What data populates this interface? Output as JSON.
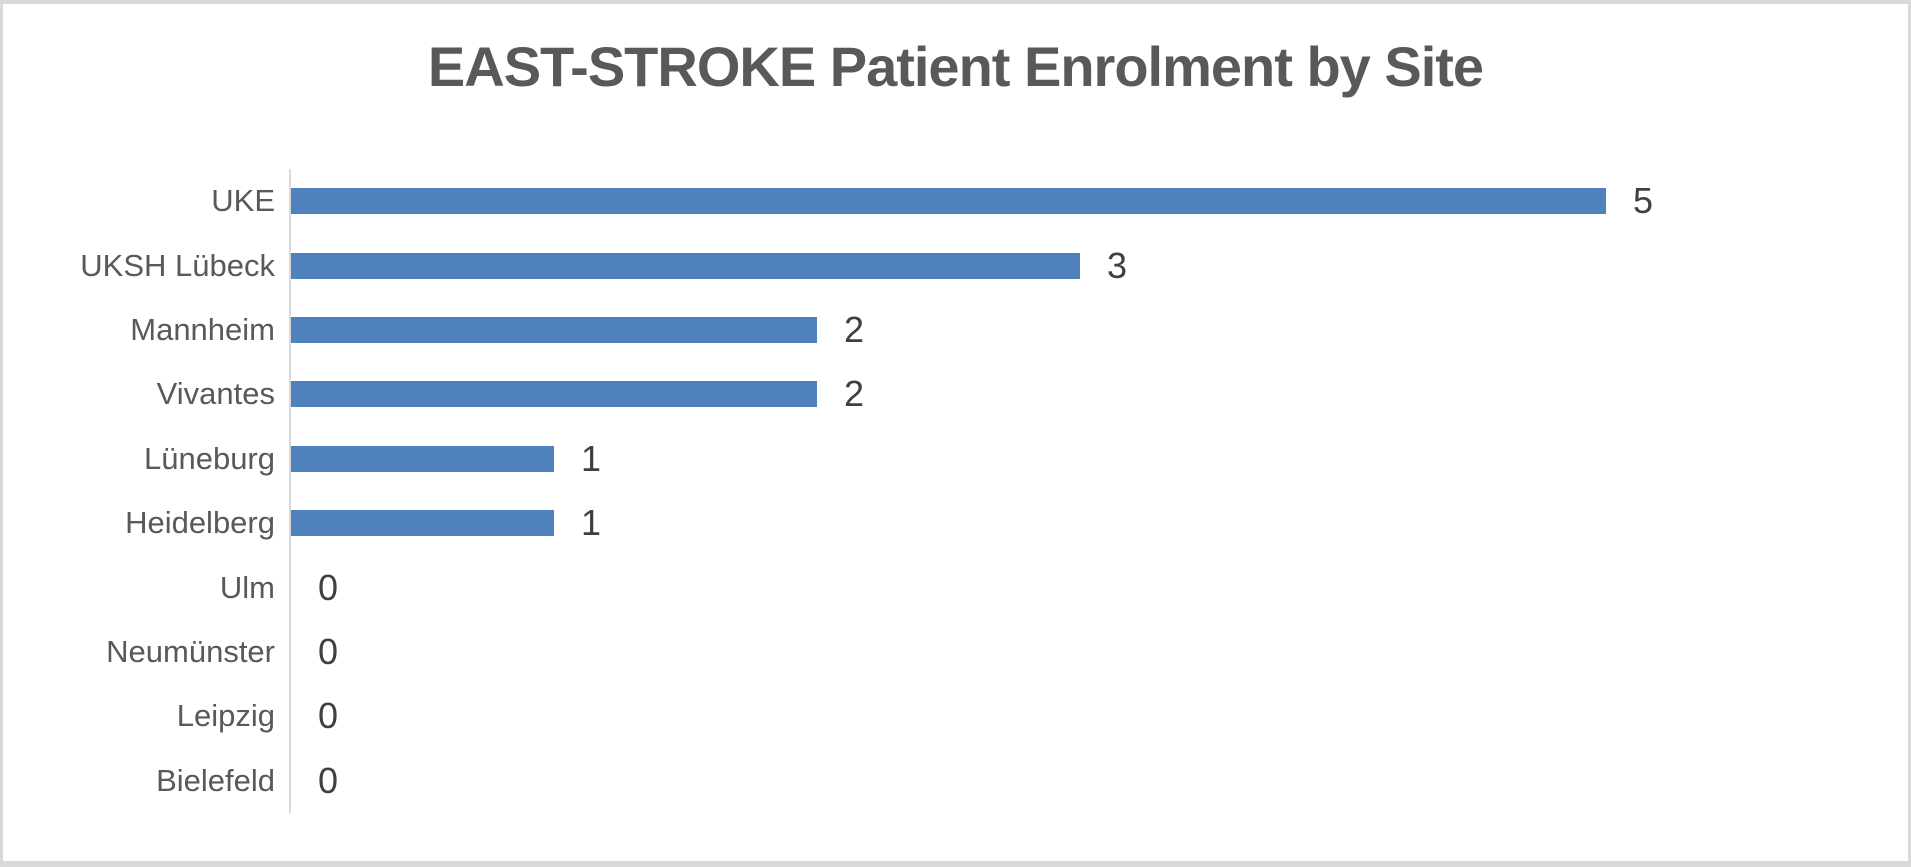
{
  "chart_data": {
    "type": "bar",
    "orientation": "horizontal",
    "title": "EAST-STROKE Patient Enrolment by Site",
    "categories": [
      "UKE",
      "UKSH Lübeck",
      "Mannheim",
      "Vivantes",
      "Lüneburg",
      "Heidelberg",
      "Ulm",
      "Neumünster",
      "Leipzig",
      "Bielefeld"
    ],
    "values": [
      5,
      3,
      2,
      2,
      1,
      1,
      0,
      0,
      0,
      0
    ],
    "xlabel": "",
    "ylabel": "",
    "xlim": [
      0,
      5
    ],
    "grid": false,
    "legend": false,
    "data_labels": true,
    "colors": {
      "bar": "#4F81BD",
      "title_text": "#595959",
      "category_text": "#595959",
      "value_text": "#404040",
      "axis_line": "#D9D9D9",
      "frame_border": "#D9D9D9",
      "background": "#FFFFFF"
    }
  }
}
